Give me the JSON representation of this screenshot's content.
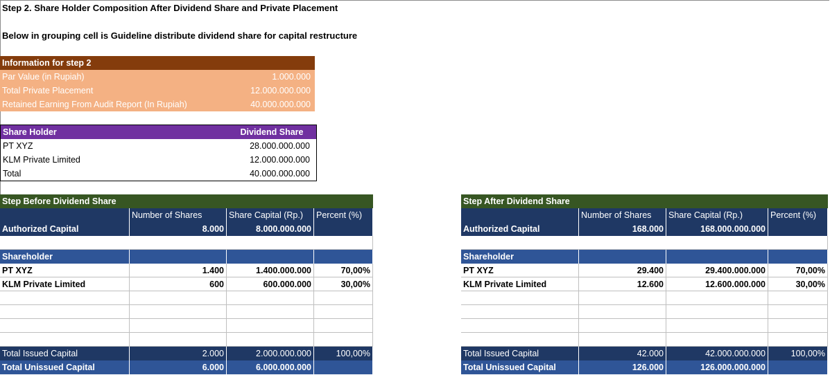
{
  "step_title": "Step 2. Share Holder Composition After Dividend Share and Private Placement",
  "subtitle": "Below in grouping cell is Guideline distribute dividend share for capital restructure",
  "info": {
    "header": "Information for step 2",
    "rows": [
      {
        "label": "Par Value (in Rupiah)",
        "value": "1.000.000"
      },
      {
        "label": "Total Private Placement",
        "value": "12.000.000.000"
      },
      {
        "label": "Retained Earning From Audit Report (In Rupiah)",
        "value": "40.000.000.000"
      }
    ]
  },
  "dividend": {
    "col_holder": "Share Holder",
    "col_share": "Dividend Share",
    "rows": [
      {
        "label": "PT XYZ",
        "value": "28.000.000.000"
      },
      {
        "label": "KLM Private Limited",
        "value": "12.000.000.000"
      },
      {
        "label": "Total",
        "value": "40.000.000.000"
      }
    ]
  },
  "before": {
    "title": "Step Before Dividend Share",
    "col_shares": "Number of Shares",
    "col_capital": "Share Capital (Rp.)",
    "col_percent": "Percent (%)",
    "authorized": {
      "label": "Authorized Capital",
      "shares": "8.000",
      "capital": "8.000.000.000"
    },
    "shareholder_label": "Shareholder",
    "holders": [
      {
        "name": "PT XYZ",
        "shares": "1.400",
        "capital": "1.400.000.000",
        "percent": "70,00%"
      },
      {
        "name": "KLM Private Limited",
        "shares": "600",
        "capital": "600.000.000",
        "percent": "30,00%"
      }
    ],
    "issued": {
      "label": "Total Issued Capital",
      "shares": "2.000",
      "capital": "2.000.000.000",
      "percent": "100,00%"
    },
    "unissued": {
      "label": "Total Unissued Capital",
      "shares": "6.000",
      "capital": "6.000.000.000"
    }
  },
  "after": {
    "title": "Step After Dividend Share",
    "col_shares": "Number of Shares",
    "col_capital": "Share Capital (Rp.)",
    "col_percent": "Percent (%)",
    "authorized": {
      "label": "Authorized Capital",
      "shares": "168.000",
      "capital": "168.000.000.000"
    },
    "shareholder_label": "Shareholder",
    "holders": [
      {
        "name": "PT XYZ",
        "shares": "29.400",
        "capital": "29.400.000.000",
        "percent": "70,00%"
      },
      {
        "name": "KLM Private Limited",
        "shares": "12.600",
        "capital": "12.600.000.000",
        "percent": "30,00%"
      }
    ],
    "issued": {
      "label": "Total Issued Capital",
      "shares": "42.000",
      "capital": "42.000.000.000",
      "percent": "100,00%"
    },
    "unissued": {
      "label": "Total Unissued Capital",
      "shares": "126.000",
      "capital": "126.000.000.000"
    }
  },
  "colors": {
    "info_header": "#843c0c",
    "info_rows": "#f4b183",
    "dividend_header": "#7030a0",
    "step_header": "#375623",
    "navy": "#1f3864",
    "blue": "#2f5597"
  }
}
